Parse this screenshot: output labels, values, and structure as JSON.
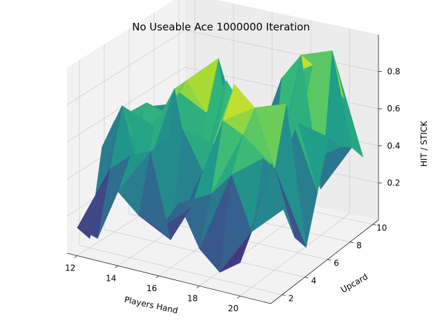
{
  "chart_data": {
    "type": "surface3d",
    "title": "No Useable Ace 1000000 Iteration",
    "xlabel": "Players Hand",
    "ylabel": "Upcard",
    "zlabel": "HIT / STICK",
    "x": [
      12,
      13,
      14,
      15,
      16,
      17,
      18,
      19,
      20,
      21
    ],
    "y": [
      1,
      2,
      3,
      4,
      5,
      6,
      7,
      8,
      9,
      10
    ],
    "xlim": [
      11.5,
      21.5
    ],
    "ylim": [
      1,
      10.5
    ],
    "zlim": [
      0,
      1
    ],
    "xticks": [
      "12",
      "14",
      "16",
      "18",
      "20"
    ],
    "yticks": [
      "2",
      "4",
      "6",
      "8",
      "10"
    ],
    "zticks": [
      "0.2",
      "0.4",
      "0.6",
      "0.8"
    ],
    "colormap": "viridis",
    "grid": true,
    "z": [
      [
        0.15,
        0.12,
        0.4,
        0.3,
        0.25,
        0.42,
        0.2,
        0.1,
        0.18,
        0.55
      ],
      [
        0.05,
        0.45,
        0.55,
        0.6,
        0.15,
        0.35,
        0.45,
        0.58,
        0.3,
        0.7
      ],
      [
        0.5,
        0.75,
        0.35,
        0.3,
        0.7,
        0.5,
        0.8,
        0.75,
        0.65,
        0.4
      ],
      [
        0.6,
        0.55,
        0.62,
        0.85,
        0.3,
        0.6,
        0.95,
        0.85,
        0.55,
        0.2
      ],
      [
        0.35,
        0.68,
        0.65,
        0.85,
        0.7,
        0.9,
        0.45,
        0.3,
        0.85,
        0.1
      ],
      [
        0.2,
        0.1,
        0.05,
        0.4,
        0.95,
        0.25,
        0.6,
        0.55,
        0.7,
        0.35
      ],
      [
        0.55,
        0.45,
        0.75,
        0.5,
        0.3,
        0.35,
        0.2,
        0.65,
        0.45,
        0.6
      ],
      [
        0.3,
        0.55,
        0.25,
        0.7,
        0.6,
        0.45,
        0.8,
        0.95,
        0.25,
        0.5
      ],
      [
        0.4,
        0.35,
        0.5,
        0.25,
        0.2,
        0.4,
        0.3,
        0.85,
        0.95,
        0.45
      ],
      [
        0.25,
        0.4,
        0.3,
        0.45,
        0.35,
        0.25,
        0.2,
        0.55,
        0.65,
        0.35
      ]
    ]
  }
}
